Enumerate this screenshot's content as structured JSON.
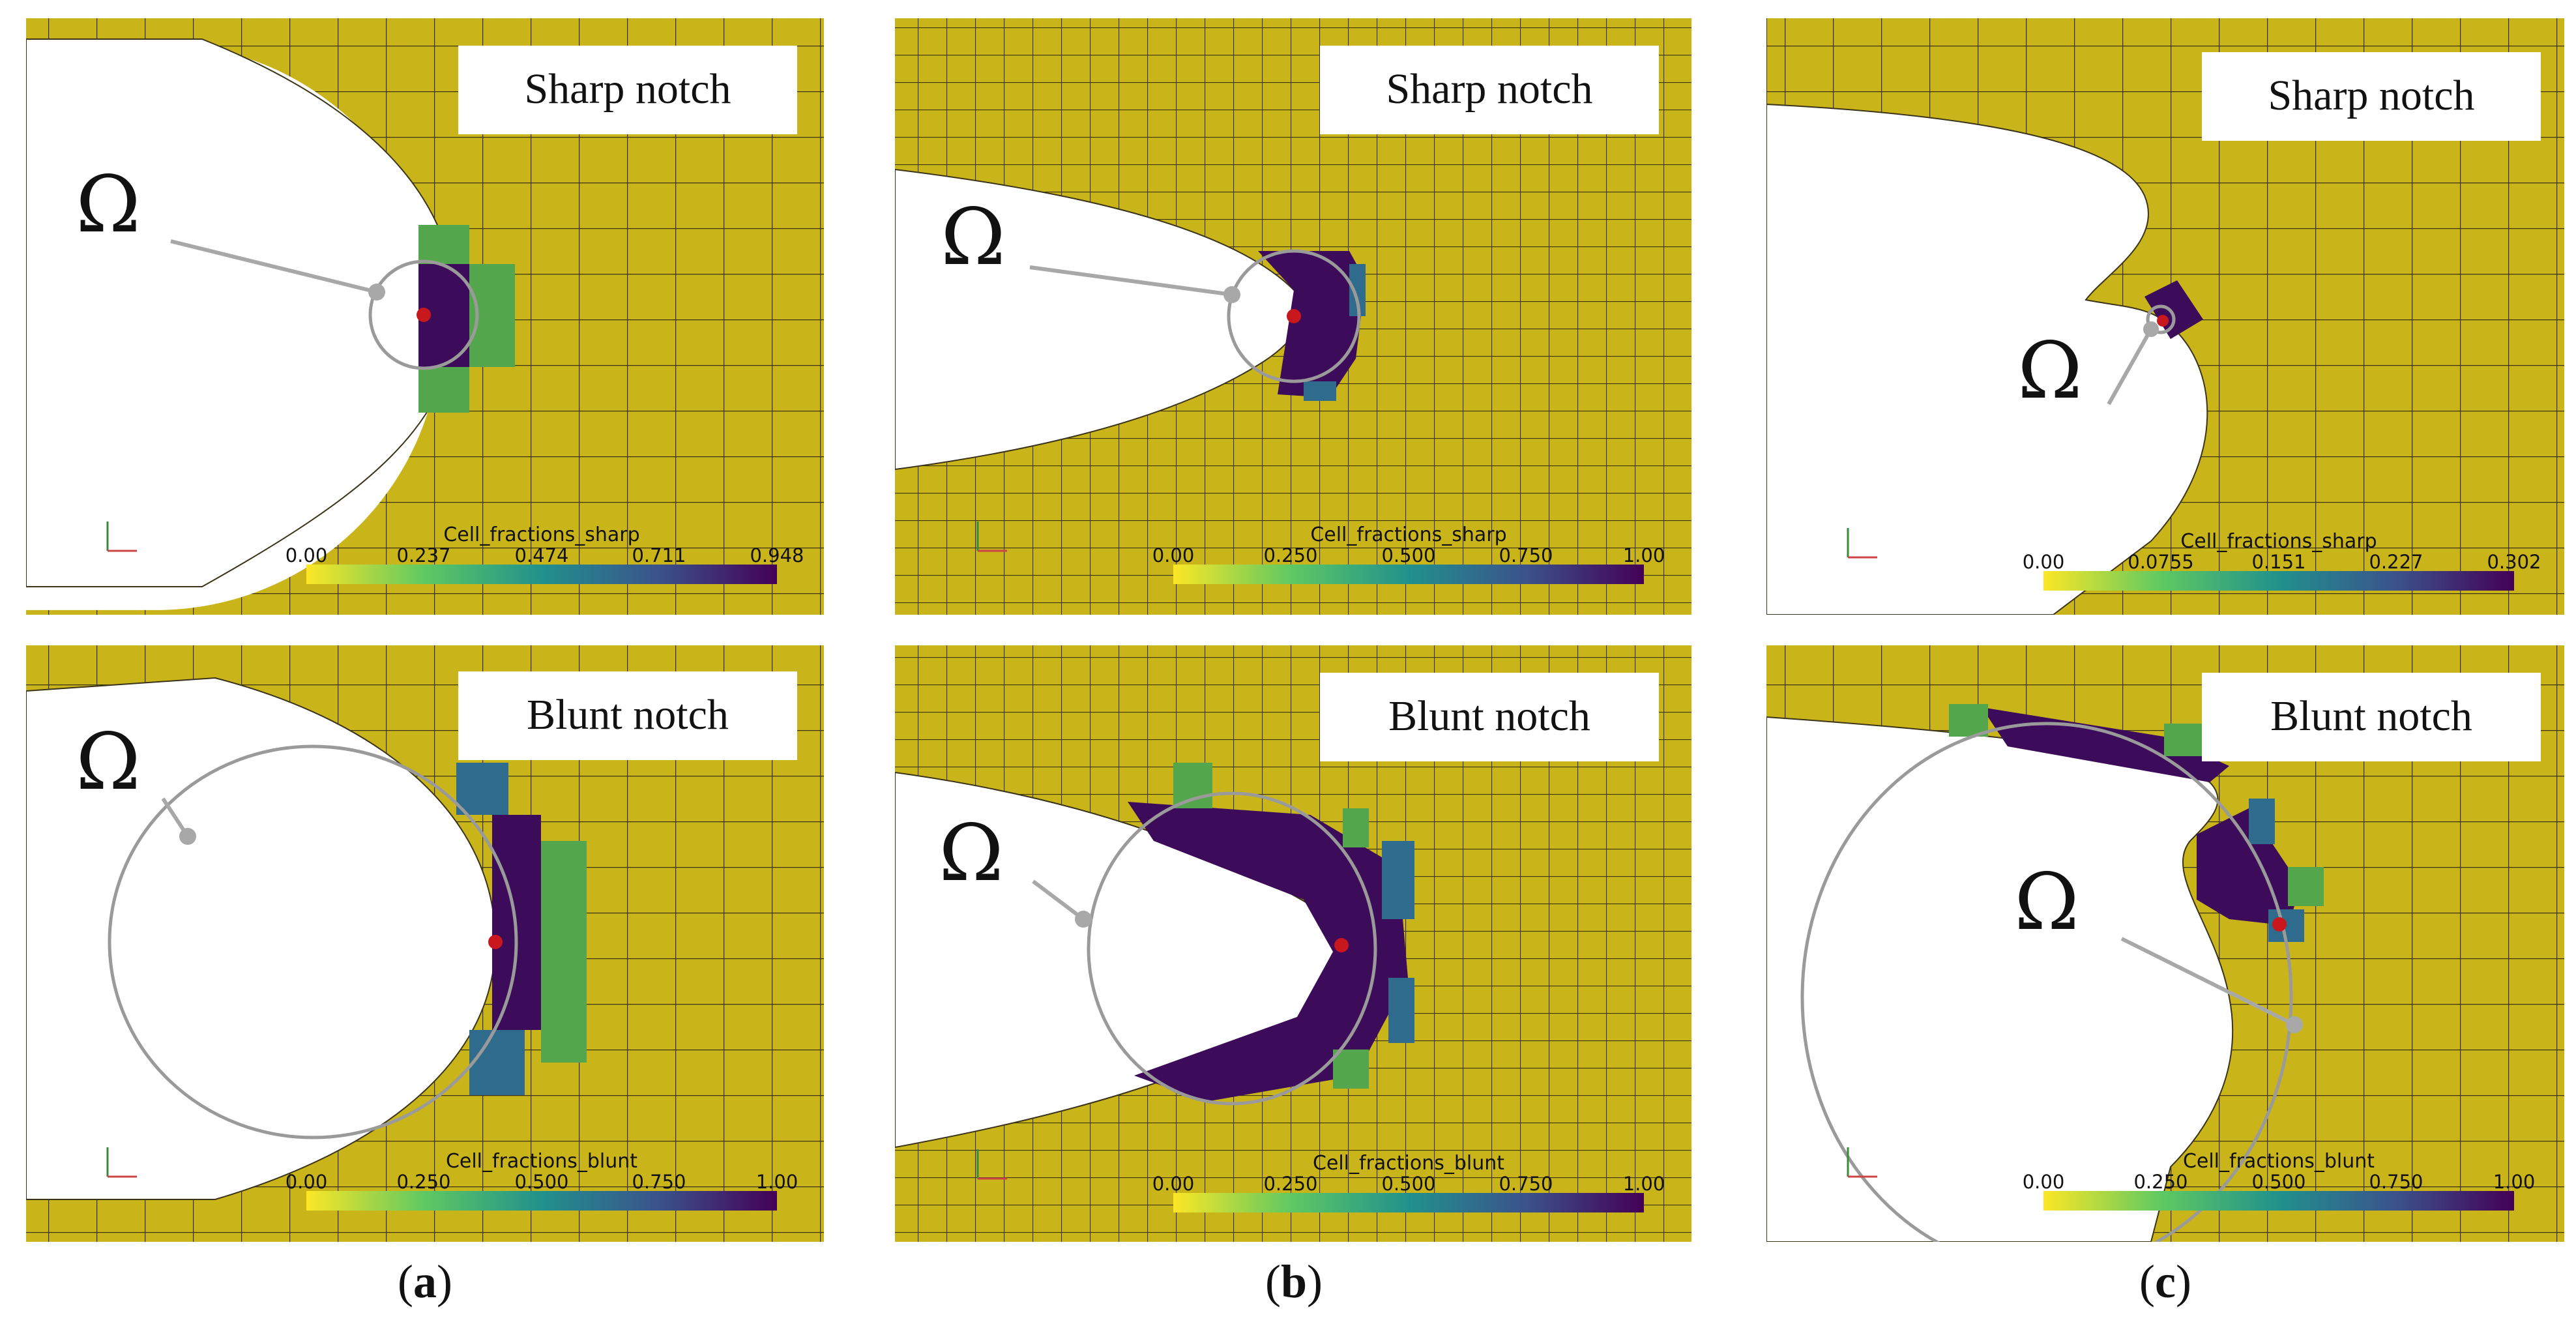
{
  "colors": {
    "background_mesh": "#c9b519",
    "mesh_line": "#3b3418",
    "full_fraction": "#3c0b59",
    "mid_fraction": "#2e6b8c",
    "low_fraction": "#54a64c",
    "marker": "#c9171e",
    "circle": "#9a9a9a"
  },
  "panels": [
    {
      "id": "a-sharp",
      "title": "Sharp notch",
      "omega": "Ω",
      "colorbar": {
        "label": "Cell_fractions_sharp",
        "ticks": [
          "0.00",
          "0.237",
          "0.474",
          "0.711",
          "0.948"
        ]
      }
    },
    {
      "id": "b-sharp",
      "title": "Sharp notch",
      "omega": "Ω",
      "colorbar": {
        "label": "Cell_fractions_sharp",
        "ticks": [
          "0.00",
          "0.250",
          "0.500",
          "0.750",
          "1.00"
        ]
      }
    },
    {
      "id": "c-sharp",
      "title": "Sharp notch",
      "omega": "Ω",
      "colorbar": {
        "label": "Cell_fractions_sharp",
        "ticks": [
          "0.00",
          "0.0755",
          "0.151",
          "0.227",
          "0.302"
        ]
      }
    },
    {
      "id": "a-blunt",
      "title": "Blunt notch",
      "omega": "Ω",
      "colorbar": {
        "label": "Cell_fractions_blunt",
        "ticks": [
          "0.00",
          "0.250",
          "0.500",
          "0.750",
          "1.00"
        ]
      }
    },
    {
      "id": "b-blunt",
      "title": "Blunt notch",
      "omega": "Ω",
      "colorbar": {
        "label": "Cell_fractions_blunt",
        "ticks": [
          "0.00",
          "0.250",
          "0.500",
          "0.750",
          "1.00"
        ]
      }
    },
    {
      "id": "c-blunt",
      "title": "Blunt notch",
      "omega": "Ω",
      "colorbar": {
        "label": "Cell_fractions_blunt",
        "ticks": [
          "0.00",
          "0.250",
          "0.500",
          "0.750",
          "1.00"
        ]
      }
    }
  ],
  "captions": [
    {
      "open": "(",
      "letter": "a",
      "close": ")"
    },
    {
      "open": "(",
      "letter": "b",
      "close": ")"
    },
    {
      "open": "(",
      "letter": "c",
      "close": ")"
    }
  ]
}
